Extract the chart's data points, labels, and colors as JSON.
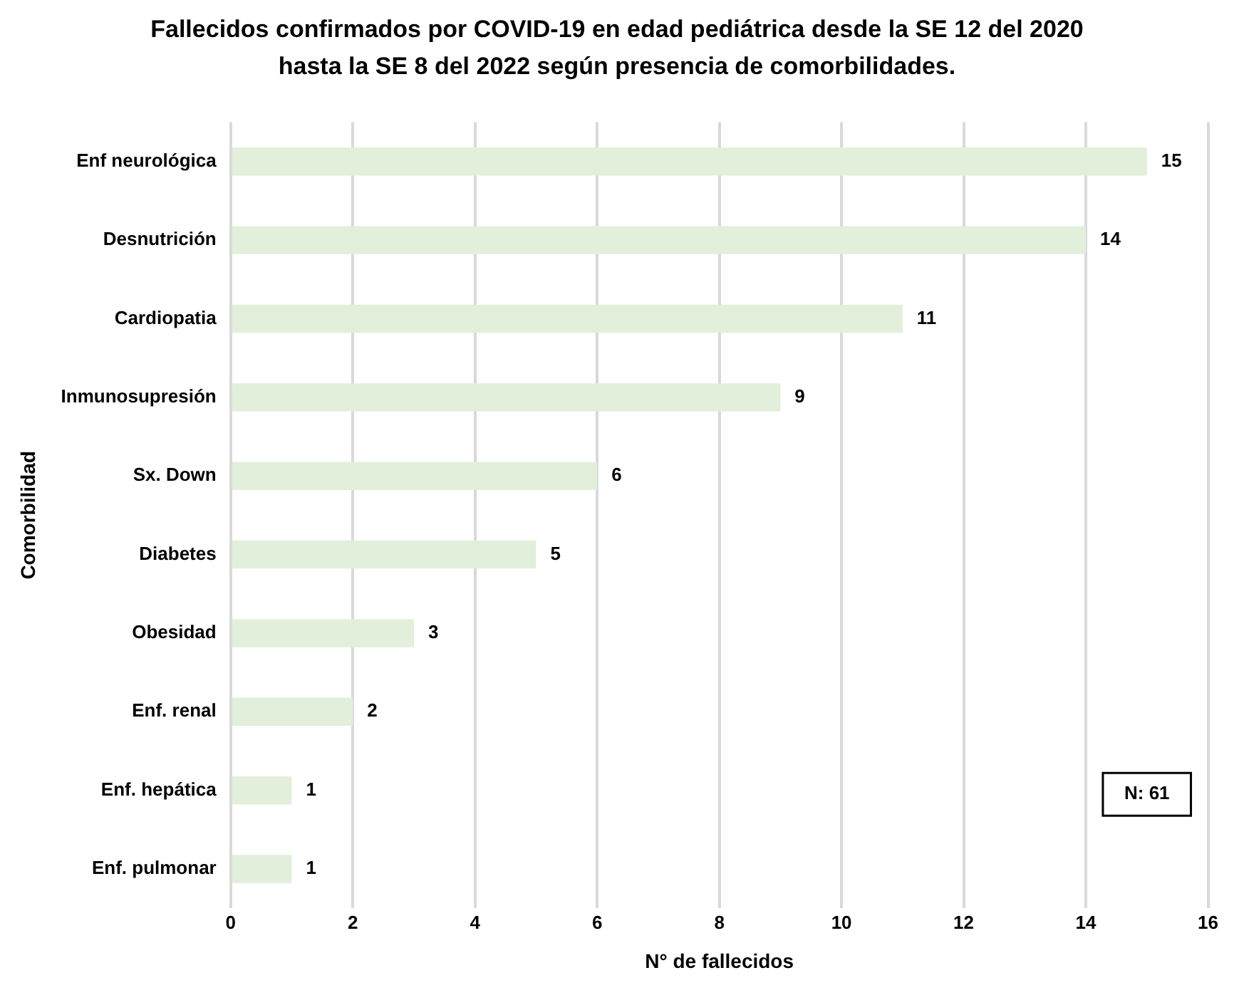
{
  "chart_data": {
    "type": "bar",
    "orientation": "horizontal",
    "title": "Fallecidos confirmados por COVID-19 en edad pediátrica desde la SE 12 del 2020 hasta la SE 8 del 2022 según presencia de comorbilidades.",
    "xlabel": "N° de fallecidos",
    "ylabel": "Comorbilidad",
    "categories": [
      "Enf neurológica",
      "Desnutrición",
      "Cardiopatia",
      "Inmunosupresión",
      "Sx. Down",
      "Diabetes",
      "Obesidad",
      "Enf. renal",
      "Enf. hepática",
      "Enf. pulmonar"
    ],
    "values": [
      15,
      14,
      11,
      9,
      6,
      5,
      3,
      2,
      1,
      1
    ],
    "color": "#e2efda",
    "xlim": [
      0,
      16
    ],
    "xticks": [
      0,
      2,
      4,
      6,
      8,
      10,
      12,
      14,
      16
    ],
    "grid": "x",
    "data_labels": true,
    "legend": false,
    "annotations": [
      "N: 61"
    ]
  }
}
